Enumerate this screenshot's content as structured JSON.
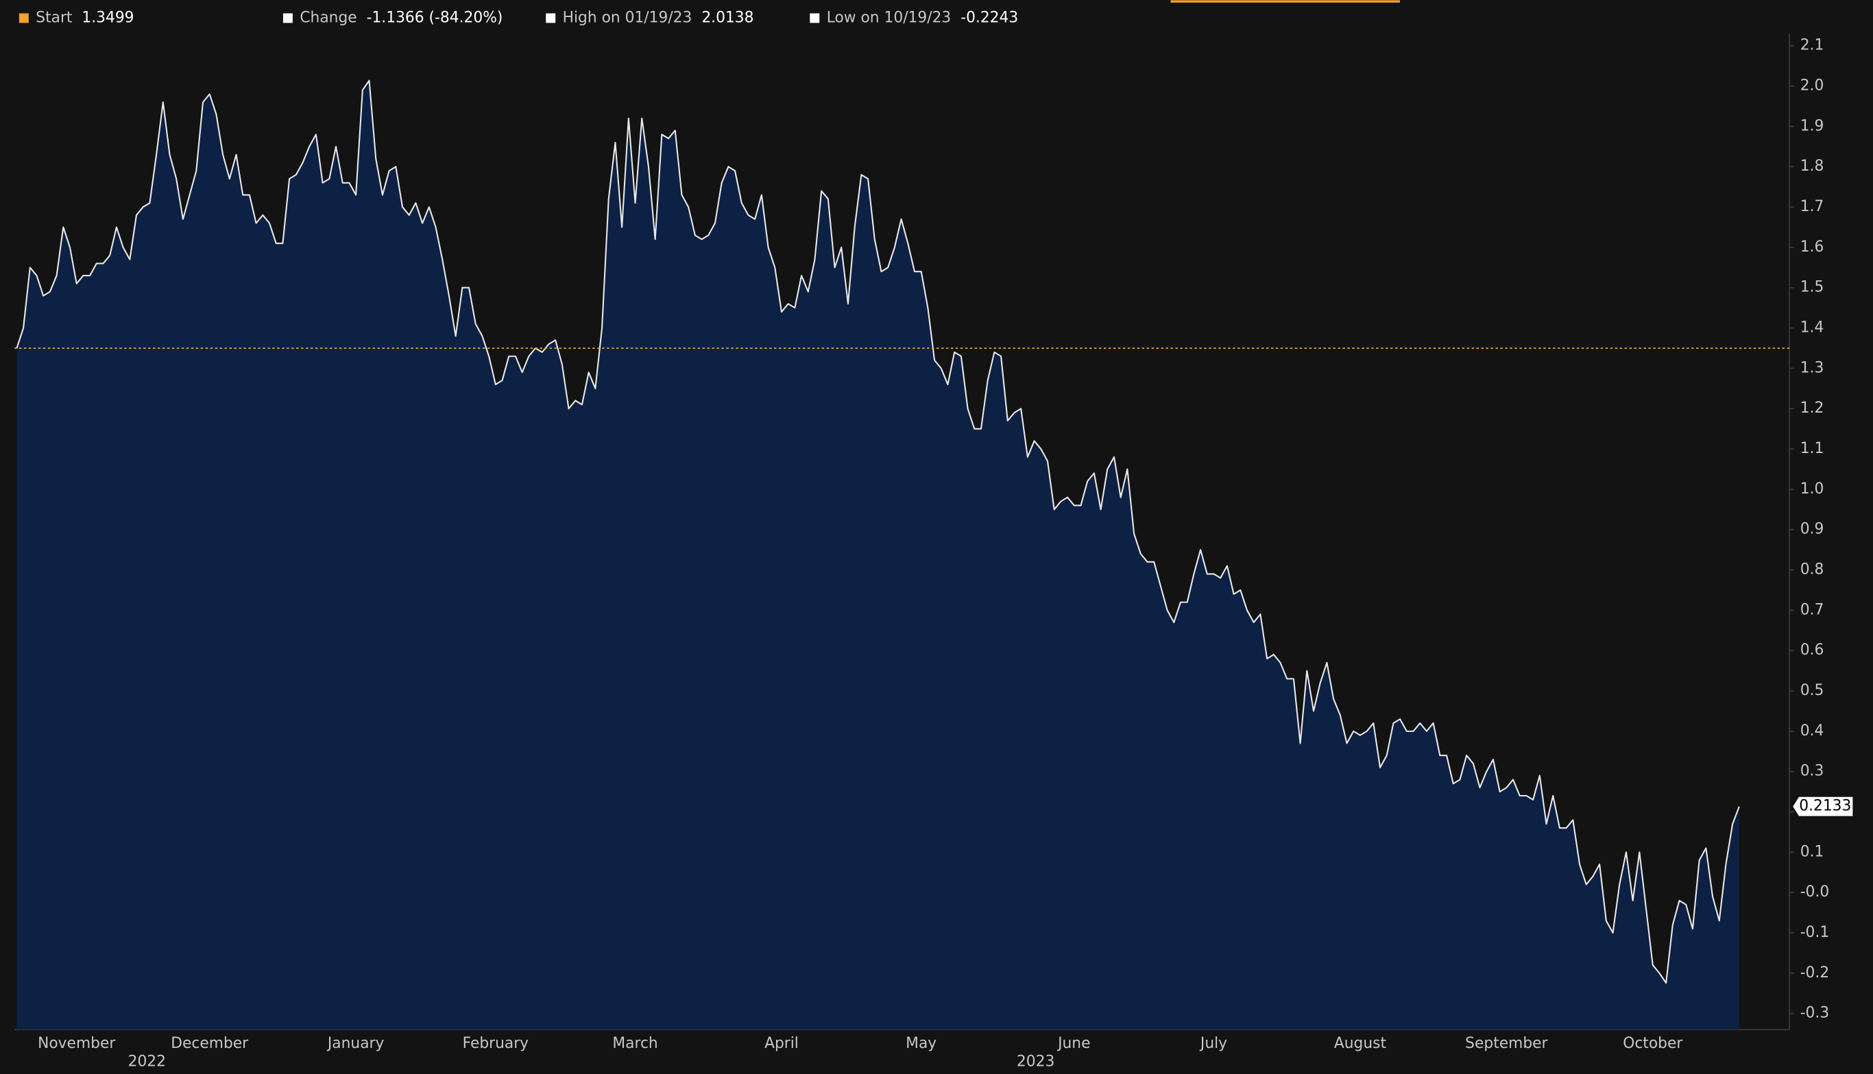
{
  "chart_data": {
    "type": "area",
    "stats": [
      {
        "label": "Start",
        "value": 1.3499,
        "color": "#f5a02a"
      },
      {
        "label": "Change",
        "value": "-1.1366 (-84.20%)",
        "color": "#ffffff"
      },
      {
        "label": "High on 01/19/23",
        "value": 2.0138,
        "color": "#ffffff"
      },
      {
        "label": "Low on 10/19/23",
        "value": -0.2243,
        "color": "#ffffff"
      }
    ],
    "year_labels": [
      "2022",
      "2023"
    ],
    "categories": [
      null,
      null,
      null,
      null,
      null,
      null,
      null,
      null,
      null,
      "November",
      null,
      null,
      null,
      null,
      null,
      null,
      null,
      null,
      null,
      null,
      null,
      null,
      null,
      null,
      null,
      null,
      null,
      null,
      null,
      "December",
      null,
      null,
      null,
      null,
      null,
      null,
      null,
      null,
      null,
      null,
      null,
      null,
      null,
      null,
      null,
      null,
      null,
      null,
      null,
      null,
      null,
      "January",
      null,
      null,
      null,
      null,
      null,
      null,
      null,
      null,
      null,
      null,
      null,
      null,
      null,
      null,
      null,
      null,
      null,
      null,
      null,
      null,
      "February",
      null,
      null,
      null,
      null,
      null,
      null,
      null,
      null,
      null,
      null,
      null,
      null,
      null,
      null,
      null,
      null,
      null,
      null,
      null,
      null,
      "March",
      null,
      null,
      null,
      null,
      null,
      null,
      null,
      null,
      null,
      null,
      null,
      null,
      null,
      null,
      null,
      null,
      null,
      null,
      null,
      null,
      null,
      "April",
      null,
      null,
      null,
      null,
      null,
      null,
      null,
      null,
      null,
      null,
      null,
      null,
      null,
      null,
      null,
      null,
      null,
      null,
      null,
      null,
      "May",
      null,
      null,
      null,
      null,
      null,
      null,
      null,
      null,
      null,
      null,
      null,
      null,
      null,
      null,
      null,
      null,
      null,
      null,
      null,
      null,
      null,
      null,
      "June",
      null,
      null,
      null,
      null,
      null,
      null,
      null,
      null,
      null,
      null,
      null,
      null,
      null,
      null,
      null,
      null,
      null,
      null,
      null,
      null,
      "July",
      null,
      null,
      null,
      null,
      null,
      null,
      null,
      null,
      null,
      null,
      null,
      null,
      null,
      null,
      null,
      null,
      null,
      null,
      null,
      null,
      null,
      "August",
      null,
      null,
      null,
      null,
      null,
      null,
      null,
      null,
      null,
      null,
      null,
      null,
      null,
      null,
      null,
      null,
      null,
      null,
      null,
      null,
      null,
      "September",
      null,
      null,
      null,
      null,
      null,
      null,
      null,
      null,
      null,
      null,
      null,
      null,
      null,
      null,
      null,
      null,
      null,
      null,
      null,
      null,
      null,
      "October",
      null,
      null,
      null,
      null,
      null,
      null,
      null,
      null,
      null,
      null,
      null,
      null,
      null
    ],
    "values": [
      1.3499,
      1.4,
      1.55,
      1.53,
      1.48,
      1.49,
      1.53,
      1.65,
      1.6,
      1.51,
      1.53,
      1.53,
      1.56,
      1.56,
      1.58,
      1.65,
      1.6,
      1.57,
      1.68,
      1.7,
      1.71,
      1.83,
      1.96,
      1.83,
      1.77,
      1.67,
      1.73,
      1.79,
      1.96,
      1.98,
      1.93,
      1.83,
      1.77,
      1.83,
      1.73,
      1.73,
      1.66,
      1.68,
      1.66,
      1.61,
      1.61,
      1.77,
      1.78,
      1.81,
      1.85,
      1.88,
      1.76,
      1.77,
      1.85,
      1.76,
      1.76,
      1.73,
      1.99,
      2.0138,
      1.82,
      1.73,
      1.79,
      1.8,
      1.7,
      1.68,
      1.71,
      1.66,
      1.7,
      1.65,
      1.57,
      1.48,
      1.38,
      1.5,
      1.5,
      1.41,
      1.38,
      1.33,
      1.26,
      1.27,
      1.33,
      1.33,
      1.29,
      1.33,
      1.35,
      1.34,
      1.36,
      1.37,
      1.31,
      1.2,
      1.22,
      1.21,
      1.29,
      1.25,
      1.4,
      1.72,
      1.86,
      1.65,
      1.92,
      1.71,
      1.92,
      1.8,
      1.62,
      1.88,
      1.87,
      1.89,
      1.73,
      1.7,
      1.63,
      1.62,
      1.63,
      1.66,
      1.76,
      1.8,
      1.79,
      1.71,
      1.68,
      1.67,
      1.73,
      1.6,
      1.55,
      1.44,
      1.46,
      1.45,
      1.53,
      1.49,
      1.57,
      1.74,
      1.72,
      1.55,
      1.6,
      1.46,
      1.65,
      1.78,
      1.77,
      1.62,
      1.54,
      1.55,
      1.6,
      1.67,
      1.61,
      1.54,
      1.54,
      1.45,
      1.32,
      1.3,
      1.26,
      1.34,
      1.33,
      1.2,
      1.15,
      1.15,
      1.27,
      1.34,
      1.33,
      1.17,
      1.19,
      1.2,
      1.08,
      1.12,
      1.1,
      1.07,
      0.95,
      0.97,
      0.98,
      0.96,
      0.96,
      1.02,
      1.04,
      0.95,
      1.05,
      1.08,
      0.98,
      1.05,
      0.89,
      0.84,
      0.82,
      0.82,
      0.76,
      0.7,
      0.67,
      0.72,
      0.72,
      0.79,
      0.85,
      0.79,
      0.79,
      0.78,
      0.81,
      0.74,
      0.75,
      0.7,
      0.67,
      0.69,
      0.58,
      0.59,
      0.57,
      0.53,
      0.53,
      0.37,
      0.55,
      0.45,
      0.52,
      0.57,
      0.48,
      0.44,
      0.37,
      0.4,
      0.39,
      0.4,
      0.42,
      0.31,
      0.34,
      0.42,
      0.43,
      0.4,
      0.4,
      0.42,
      0.4,
      0.42,
      0.34,
      0.34,
      0.27,
      0.28,
      0.34,
      0.32,
      0.26,
      0.3,
      0.33,
      0.25,
      0.26,
      0.28,
      0.24,
      0.24,
      0.23,
      0.29,
      0.17,
      0.24,
      0.16,
      0.16,
      0.18,
      0.07,
      0.02,
      0.04,
      0.07,
      -0.07,
      -0.1,
      0.02,
      0.1,
      -0.02,
      0.1,
      -0.04,
      -0.18,
      -0.2,
      -0.2243,
      -0.08,
      -0.02,
      -0.03,
      -0.09,
      0.08,
      0.11,
      -0.01,
      -0.07,
      0.07,
      0.17,
      0.2133
    ],
    "color": "#0d2145",
    "line_color": "#e8e8e8",
    "ylim": [
      -0.34,
      2.13
    ],
    "yticks": [
      -0.3,
      -0.2,
      -0.1,
      {
        "value": 0,
        "label": "-0.0"
      },
      0.1,
      0.2,
      0.3,
      0.4,
      0.5,
      0.6,
      0.7,
      0.8,
      0.9,
      {
        "value": 1,
        "label": "1.0"
      },
      1.1,
      1.2,
      1.3,
      1.4,
      1.5,
      1.6,
      1.7,
      1.8,
      1.9,
      {
        "value": 2,
        "label": "2.0"
      },
      2.1
    ],
    "grid": false
  }
}
